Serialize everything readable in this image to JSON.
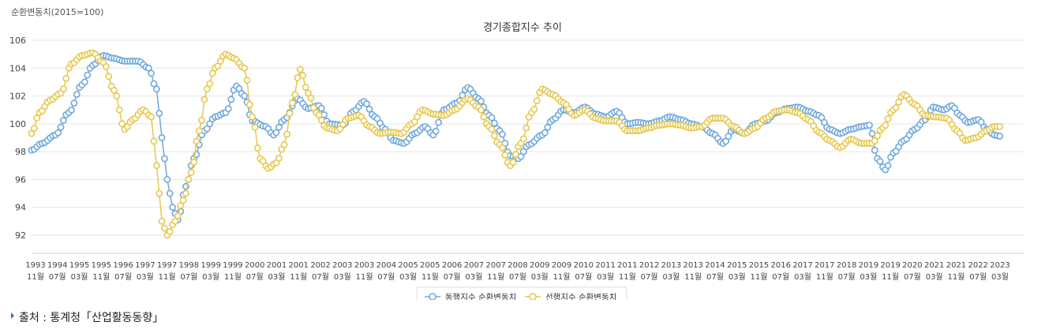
{
  "chart_data": {
    "type": "line",
    "title": "경기종합지수 추이",
    "ylabel": "순환변동치(2015=100)",
    "ylim": [
      92,
      106
    ],
    "yticks": [
      92,
      94,
      96,
      98,
      100,
      102,
      104,
      106
    ],
    "grid": true,
    "legend_position": "bottom-center",
    "x_start": "1993-11",
    "x_end": "2024-12",
    "tick_labels": [
      {
        "year": "1993",
        "month": "11월"
      },
      {
        "year": "1994",
        "month": "07월"
      },
      {
        "year": "1995",
        "month": "03월"
      },
      {
        "year": "1995",
        "month": "11월"
      },
      {
        "year": "1996",
        "month": "07월"
      },
      {
        "year": "1997",
        "month": "03월"
      },
      {
        "year": "1997",
        "month": "11월"
      },
      {
        "year": "1998",
        "month": "07월"
      },
      {
        "year": "1999",
        "month": "03월"
      },
      {
        "year": "1999",
        "month": "11월"
      },
      {
        "year": "2000",
        "month": "07월"
      },
      {
        "year": "2001",
        "month": "03월"
      },
      {
        "year": "2001",
        "month": "11월"
      },
      {
        "year": "2002",
        "month": "07월"
      },
      {
        "year": "2003",
        "month": "03월"
      },
      {
        "year": "2003",
        "month": "11월"
      },
      {
        "year": "2004",
        "month": "07월"
      },
      {
        "year": "2005",
        "month": "03월"
      },
      {
        "year": "2005",
        "month": "11월"
      },
      {
        "year": "2006",
        "month": "07월"
      },
      {
        "year": "2007",
        "month": "03월"
      },
      {
        "year": "2007",
        "month": "11월"
      },
      {
        "year": "2008",
        "month": "07월"
      },
      {
        "year": "2009",
        "month": "03월"
      },
      {
        "year": "2009",
        "month": "11월"
      },
      {
        "year": "2010",
        "month": "07월"
      },
      {
        "year": "2011",
        "month": "03월"
      },
      {
        "year": "2011",
        "month": "11월"
      },
      {
        "year": "2012",
        "month": "07월"
      },
      {
        "year": "2013",
        "month": "03월"
      },
      {
        "year": "2013",
        "month": "11월"
      },
      {
        "year": "2014",
        "month": "07월"
      },
      {
        "year": "2015",
        "month": "03월"
      },
      {
        "year": "2015",
        "month": "11월"
      },
      {
        "year": "2016",
        "month": "07월"
      },
      {
        "year": "2017",
        "month": "03월"
      },
      {
        "year": "2017",
        "month": "11월"
      },
      {
        "year": "2018",
        "month": "07월"
      },
      {
        "year": "2019",
        "month": "03월"
      },
      {
        "year": "2019",
        "month": "11월"
      },
      {
        "year": "2020",
        "month": "07월"
      },
      {
        "year": "2021",
        "month": "03월"
      },
      {
        "year": "2021",
        "month": "11월"
      },
      {
        "year": "2022",
        "month": "07월"
      },
      {
        "year": "2023",
        "month": "03월"
      }
    ],
    "series": [
      {
        "name": "동행지수 순환변동치",
        "color": "#6fa8dc",
        "knots": [
          [
            "1993-11",
            98.1
          ],
          [
            "1994-03",
            98.6
          ],
          [
            "1994-08",
            99.2
          ],
          [
            "1995-01",
            100.8
          ],
          [
            "1995-06",
            102.8
          ],
          [
            "1995-10",
            104.2
          ],
          [
            "1996-02",
            104.9
          ],
          [
            "1996-06",
            104.7
          ],
          [
            "1996-10",
            104.5
          ],
          [
            "1997-03",
            104.5
          ],
          [
            "1997-07",
            104.0
          ],
          [
            "1997-10",
            102.5
          ],
          [
            "1997-12",
            99.0
          ],
          [
            "1998-02",
            96.0
          ],
          [
            "1998-04",
            94.0
          ],
          [
            "1998-06",
            93.1
          ],
          [
            "1998-09",
            95.5
          ],
          [
            "1998-12",
            97.5
          ],
          [
            "1999-04",
            99.5
          ],
          [
            "1999-08",
            100.5
          ],
          [
            "1999-12",
            100.8
          ],
          [
            "2000-04",
            102.7
          ],
          [
            "2000-07",
            102.0
          ],
          [
            "2000-10",
            100.2
          ],
          [
            "2001-03",
            99.8
          ],
          [
            "2001-06",
            99.2
          ],
          [
            "2001-10",
            100.3
          ],
          [
            "2002-03",
            101.8
          ],
          [
            "2002-07",
            101.1
          ],
          [
            "2002-11",
            101.3
          ],
          [
            "2003-03",
            100.0
          ],
          [
            "2003-08",
            99.9
          ],
          [
            "2003-12",
            100.9
          ],
          [
            "2004-04",
            101.6
          ],
          [
            "2004-08",
            100.5
          ],
          [
            "2004-12",
            99.6
          ],
          [
            "2005-03",
            98.8
          ],
          [
            "2005-07",
            98.6
          ],
          [
            "2005-11",
            99.3
          ],
          [
            "2006-03",
            99.8
          ],
          [
            "2006-06",
            99.2
          ],
          [
            "2006-10",
            101.0
          ],
          [
            "2007-03",
            101.5
          ],
          [
            "2007-07",
            102.6
          ],
          [
            "2007-11",
            101.8
          ],
          [
            "2008-03",
            100.6
          ],
          [
            "2008-07",
            99.5
          ],
          [
            "2008-11",
            97.7
          ],
          [
            "2009-02",
            97.5
          ],
          [
            "2009-06",
            98.5
          ],
          [
            "2009-11",
            99.2
          ],
          [
            "2010-03",
            100.3
          ],
          [
            "2010-07",
            101.0
          ],
          [
            "2010-11",
            100.8
          ],
          [
            "2011-03",
            101.2
          ],
          [
            "2011-07",
            100.7
          ],
          [
            "2011-11",
            100.5
          ],
          [
            "2012-03",
            100.9
          ],
          [
            "2012-07",
            100.0
          ],
          [
            "2012-11",
            100.1
          ],
          [
            "2013-03",
            100.0
          ],
          [
            "2013-07",
            100.2
          ],
          [
            "2013-11",
            100.5
          ],
          [
            "2014-03",
            100.3
          ],
          [
            "2014-07",
            100.0
          ],
          [
            "2014-11",
            99.8
          ],
          [
            "2015-03",
            99.3
          ],
          [
            "2015-07",
            98.6
          ],
          [
            "2015-11",
            99.6
          ],
          [
            "2016-03",
            99.3
          ],
          [
            "2016-07",
            100.0
          ],
          [
            "2016-11",
            100.2
          ],
          [
            "2017-03",
            100.8
          ],
          [
            "2017-07",
            101.1
          ],
          [
            "2017-11",
            101.2
          ],
          [
            "2018-03",
            100.9
          ],
          [
            "2018-07",
            100.6
          ],
          [
            "2018-11",
            99.6
          ],
          [
            "2019-03",
            99.3
          ],
          [
            "2019-07",
            99.6
          ],
          [
            "2019-11",
            99.8
          ],
          [
            "2020-02",
            99.9
          ],
          [
            "2020-05",
            97.5
          ],
          [
            "2020-08",
            96.7
          ],
          [
            "2020-11",
            97.9
          ],
          [
            "2021-03",
            98.8
          ],
          [
            "2021-07",
            99.6
          ],
          [
            "2021-11",
            100.3
          ],
          [
            "2022-02",
            101.2
          ],
          [
            "2022-06",
            101.0
          ],
          [
            "2022-09",
            101.3
          ],
          [
            "2022-12",
            100.6
          ],
          [
            "2023-03",
            100.1
          ],
          [
            "2023-07",
            100.3
          ],
          [
            "2023-10",
            99.6
          ],
          [
            "2024-01",
            99.2
          ],
          [
            "2024-03",
            99.1
          ]
        ]
      },
      {
        "name": "선행지수 순환변동치",
        "color": "#e6c84e",
        "knots": [
          [
            "1993-11",
            99.3
          ],
          [
            "1994-02",
            100.8
          ],
          [
            "1994-06",
            101.7
          ],
          [
            "1994-10",
            102.2
          ],
          [
            "1995-02",
            104.3
          ],
          [
            "1995-06",
            104.9
          ],
          [
            "1995-10",
            105.1
          ],
          [
            "1996-02",
            104.4
          ],
          [
            "1996-06",
            102.4
          ],
          [
            "1996-10",
            99.6
          ],
          [
            "1997-01",
            100.3
          ],
          [
            "1997-05",
            101.0
          ],
          [
            "1997-08",
            100.5
          ],
          [
            "1997-10",
            97.0
          ],
          [
            "1997-12",
            93.0
          ],
          [
            "1998-02",
            92.0
          ],
          [
            "1998-05",
            93.0
          ],
          [
            "1998-08",
            94.5
          ],
          [
            "1998-11",
            96.5
          ],
          [
            "1999-02",
            99.5
          ],
          [
            "1999-05",
            102.5
          ],
          [
            "1999-08",
            104.0
          ],
          [
            "1999-12",
            105.0
          ],
          [
            "2000-03",
            104.7
          ],
          [
            "2000-07",
            104.0
          ],
          [
            "2000-10",
            100.5
          ],
          [
            "2001-01",
            97.5
          ],
          [
            "2001-04",
            96.8
          ],
          [
            "2001-07",
            97.2
          ],
          [
            "2001-10",
            98.5
          ],
          [
            "2002-01",
            101.5
          ],
          [
            "2002-04",
            103.9
          ],
          [
            "2002-07",
            102.2
          ],
          [
            "2002-10",
            100.8
          ],
          [
            "2003-02",
            99.7
          ],
          [
            "2003-06",
            99.5
          ],
          [
            "2003-10",
            100.4
          ],
          [
            "2004-02",
            100.6
          ],
          [
            "2004-06",
            99.8
          ],
          [
            "2004-10",
            99.3
          ],
          [
            "2005-02",
            99.4
          ],
          [
            "2005-06",
            99.3
          ],
          [
            "2005-10",
            100.0
          ],
          [
            "2006-02",
            101.0
          ],
          [
            "2006-06",
            100.7
          ],
          [
            "2006-10",
            100.6
          ],
          [
            "2007-02",
            101.0
          ],
          [
            "2007-07",
            101.8
          ],
          [
            "2007-11",
            101.2
          ],
          [
            "2008-03",
            99.8
          ],
          [
            "2008-07",
            98.5
          ],
          [
            "2008-11",
            97.0
          ],
          [
            "2009-03",
            98.6
          ],
          [
            "2009-07",
            100.8
          ],
          [
            "2009-11",
            102.5
          ],
          [
            "2010-03",
            102.1
          ],
          [
            "2010-07",
            101.5
          ],
          [
            "2010-11",
            100.6
          ],
          [
            "2011-03",
            101.0
          ],
          [
            "2011-07",
            100.4
          ],
          [
            "2011-11",
            100.2
          ],
          [
            "2012-03",
            100.2
          ],
          [
            "2012-07",
            99.5
          ],
          [
            "2012-11",
            99.5
          ],
          [
            "2013-03",
            99.7
          ],
          [
            "2013-07",
            99.9
          ],
          [
            "2013-11",
            100.0
          ],
          [
            "2014-03",
            99.9
          ],
          [
            "2014-07",
            99.7
          ],
          [
            "2014-11",
            99.8
          ],
          [
            "2015-03",
            100.4
          ],
          [
            "2015-07",
            100.4
          ],
          [
            "2015-11",
            99.8
          ],
          [
            "2016-03",
            99.3
          ],
          [
            "2016-07",
            99.7
          ],
          [
            "2016-11",
            100.4
          ],
          [
            "2017-03",
            100.9
          ],
          [
            "2017-07",
            101.0
          ],
          [
            "2017-11",
            100.8
          ],
          [
            "2018-03",
            100.3
          ],
          [
            "2018-07",
            99.4
          ],
          [
            "2018-11",
            98.8
          ],
          [
            "2019-03",
            98.3
          ],
          [
            "2019-07",
            98.9
          ],
          [
            "2019-11",
            98.6
          ],
          [
            "2020-03",
            98.6
          ],
          [
            "2020-07",
            99.7
          ],
          [
            "2020-11",
            101.0
          ],
          [
            "2021-03",
            102.1
          ],
          [
            "2021-07",
            101.4
          ],
          [
            "2021-11",
            100.6
          ],
          [
            "2022-03",
            100.5
          ],
          [
            "2022-07",
            100.4
          ],
          [
            "2022-11",
            99.5
          ],
          [
            "2023-02",
            98.8
          ],
          [
            "2023-06",
            99.0
          ],
          [
            "2023-10",
            99.5
          ],
          [
            "2024-01",
            99.8
          ],
          [
            "2024-03",
            99.8
          ]
        ]
      }
    ]
  },
  "footer": {
    "source_text": "출처 : 통계청「산업활동동향」"
  }
}
